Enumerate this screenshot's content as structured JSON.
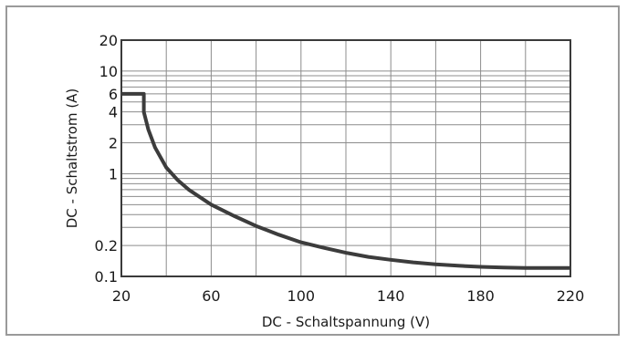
{
  "chart_data": {
    "type": "line",
    "title": "",
    "xlabel": "DC - Schaltspannung (V)",
    "ylabel": "DC - Schaltstrom (A)",
    "xlim": [
      20,
      220
    ],
    "ylim": [
      0.1,
      20
    ],
    "yscale": "log",
    "grid": true,
    "x_ticks": [
      20,
      60,
      100,
      140,
      180,
      220
    ],
    "x_tick_labels": [
      "20",
      "60",
      "100",
      "140",
      "180",
      "220"
    ],
    "y_ticks": [
      0.1,
      0.2,
      1,
      2,
      4,
      6,
      10,
      20
    ],
    "y_tick_labels": [
      "0.1",
      "0.2",
      "1",
      "2",
      "4",
      "6",
      "10",
      "20"
    ],
    "series": [
      {
        "color": "#3c3c3c",
        "x": [
          20,
          30,
          30,
          32,
          35,
          40,
          45,
          50,
          60,
          70,
          80,
          90,
          100,
          110,
          120,
          130,
          140,
          150,
          160,
          170,
          180,
          190,
          200,
          210,
          220
        ],
        "y": [
          6,
          6,
          4,
          2.7,
          1.8,
          1.15,
          0.87,
          0.7,
          0.5,
          0.39,
          0.31,
          0.255,
          0.215,
          0.19,
          0.17,
          0.155,
          0.145,
          0.137,
          0.131,
          0.127,
          0.124,
          0.122,
          0.121,
          0.121,
          0.121
        ]
      }
    ]
  }
}
